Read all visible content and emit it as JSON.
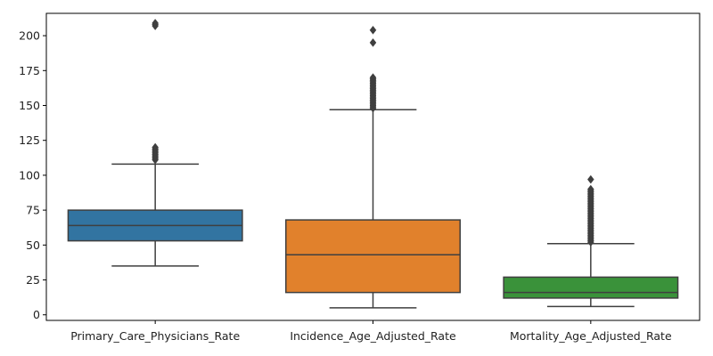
{
  "chart_data": {
    "type": "boxplot",
    "title": "",
    "xlabel": "",
    "ylabel": "",
    "ylim": [
      -4,
      216
    ],
    "yticks": [
      0,
      25,
      50,
      75,
      100,
      125,
      150,
      175,
      200
    ],
    "ytick_labels": [
      "0",
      "25",
      "50",
      "75",
      "100",
      "125",
      "150",
      "175",
      "200"
    ],
    "grid": false,
    "series": [
      {
        "name": "Primary_Care_Physicians_Rate",
        "color": "#3274a1",
        "whisker_low": 35,
        "q1": 53,
        "median": 64,
        "q3": 75,
        "whisker_high": 108,
        "outliers": [
          111,
          112,
          113,
          114,
          115,
          116,
          117,
          118,
          119,
          120,
          207,
          208,
          209
        ]
      },
      {
        "name": "Incidence_Age_Adjusted_Rate",
        "color": "#e1812c",
        "whisker_low": 5,
        "q1": 16,
        "median": 43,
        "q3": 68,
        "whisker_high": 147,
        "outliers": [
          148,
          149,
          150,
          151,
          152,
          153,
          154,
          155,
          156,
          157,
          158,
          159,
          160,
          161,
          162,
          163,
          164,
          165,
          166,
          167,
          168,
          169,
          170,
          195,
          204
        ]
      },
      {
        "name": "Mortality_Age_Adjusted_Rate",
        "color": "#3a923a",
        "whisker_low": 6,
        "q1": 12,
        "median": 16,
        "q3": 27,
        "whisker_high": 51,
        "outliers": [
          52,
          53,
          54,
          55,
          56,
          57,
          58,
          59,
          60,
          61,
          62,
          63,
          64,
          65,
          66,
          67,
          68,
          69,
          70,
          71,
          72,
          73,
          74,
          75,
          76,
          77,
          78,
          79,
          80,
          81,
          82,
          83,
          84,
          85,
          86,
          87,
          88,
          89,
          90,
          97
        ]
      }
    ]
  }
}
